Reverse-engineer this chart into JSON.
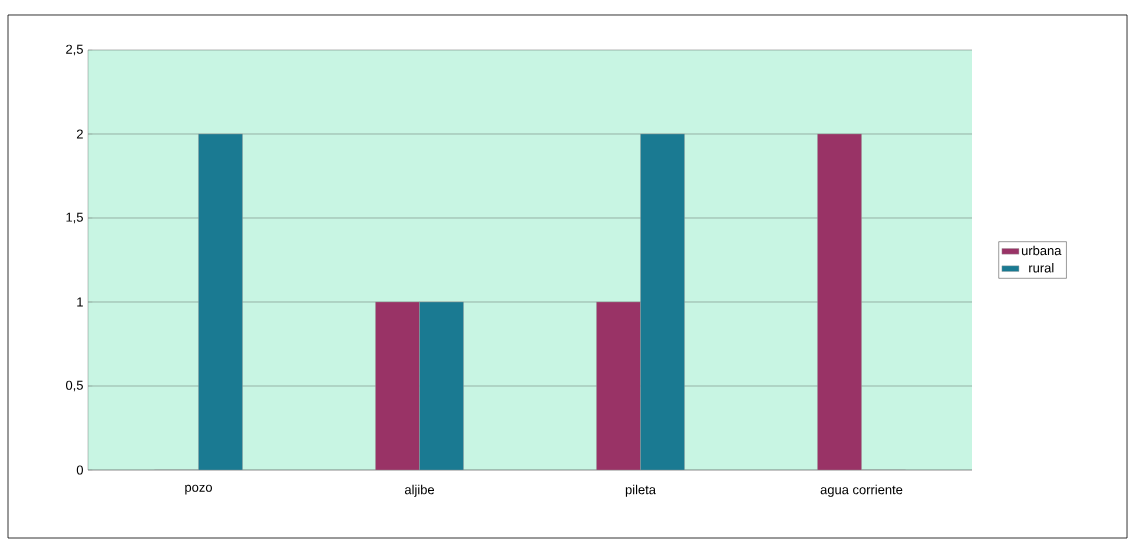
{
  "chart_data": {
    "type": "bar",
    "categories": [
      "pozo",
      "aljibe",
      "pileta",
      "agua corriente"
    ],
    "series": [
      {
        "name": "urbana",
        "color": "#993366",
        "values": [
          0,
          1,
          1,
          2
        ]
      },
      {
        "name": "rural",
        "color": "#1a7a92",
        "values": [
          2,
          1,
          2,
          0
        ]
      }
    ],
    "ylim": [
      0,
      2.5
    ],
    "yticks": [
      0,
      {
        "value": 0.5,
        "label": "0,5"
      },
      1,
      {
        "value": 1.5,
        "label": "1,5"
      },
      2,
      {
        "value": 2.5,
        "label": "2,5"
      }
    ],
    "grid": "y",
    "legend": "right"
  }
}
